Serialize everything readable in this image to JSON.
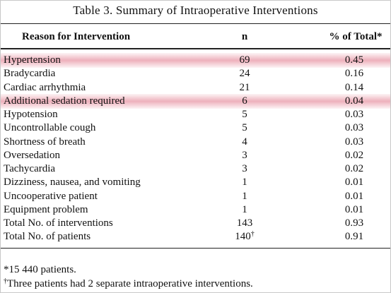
{
  "table": {
    "title": "Table 3.  Summary of Intraoperative Interventions",
    "columns": [
      "Reason for Intervention",
      "n",
      "% of Total*"
    ],
    "rows": [
      {
        "reason": "Hypertension",
        "n": 69,
        "percent": 0.45,
        "highlighted": true
      },
      {
        "reason": "Bradycardia",
        "n": 24,
        "percent": 0.16
      },
      {
        "reason": "Cardiac arrhythmia",
        "n": 21,
        "percent": 0.14
      },
      {
        "reason": "Additional sedation required",
        "n": 6,
        "percent": 0.04,
        "highlighted": true
      },
      {
        "reason": "Hypotension",
        "n": 5,
        "percent": 0.03
      },
      {
        "reason": "Uncontrollable cough",
        "n": 5,
        "percent": 0.03
      },
      {
        "reason": "Shortness of breath",
        "n": 4,
        "percent": 0.03
      },
      {
        "reason": "Oversedation",
        "n": 3,
        "percent": 0.02
      },
      {
        "reason": "Tachycardia",
        "n": 3,
        "percent": 0.02
      },
      {
        "reason": "Dizziness, nausea, and vomiting",
        "n": 1,
        "percent": 0.01
      },
      {
        "reason": "Uncooperative patient",
        "n": 1,
        "percent": 0.01
      },
      {
        "reason": "Equipment problem",
        "n": 1,
        "percent": 0.01
      },
      {
        "reason": "Total No. of interventions",
        "n": 143,
        "percent": 0.93
      },
      {
        "reason": "Total No. of patients",
        "n": 140,
        "n_mark": "†",
        "percent": 0.91
      }
    ],
    "footnotes": [
      {
        "mark": "*",
        "text": "15 440 patients."
      },
      {
        "mark": "†",
        "text": "Three patients had 2 separate intraoperative interventions."
      }
    ]
  }
}
